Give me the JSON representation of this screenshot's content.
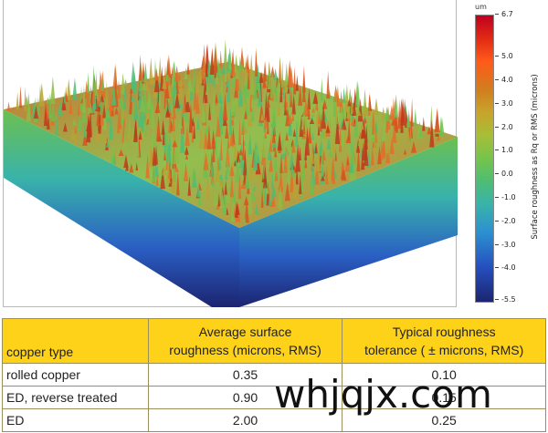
{
  "figure": {
    "colorbar": {
      "unit": "um",
      "title": "Surface roughness as Rq or RMS (microns)",
      "ticks": [
        "6.7",
        "5.0",
        "4.0",
        "3.0",
        "2.0",
        "1.0",
        "0.0",
        "-1.0",
        "-2.0",
        "-3.0",
        "-4.0",
        "-5.5"
      ],
      "colors": [
        "#c0001f",
        "#ff5a1a",
        "#a6be38",
        "#39b3aa",
        "#254fbe",
        "#1c2470"
      ]
    },
    "surface": {
      "icon": "3d-surface-roughness-plot",
      "top_color": "#d9531e",
      "mid_color": "#7cc24a",
      "base_color": "#243a9c"
    }
  },
  "table": {
    "headers": {
      "type": "copper type",
      "avg": [
        "Average surface",
        "roughness (microns, RMS)"
      ],
      "tol": [
        "Typical roughness",
        "tolerance ( ± microns, RMS)"
      ]
    },
    "rows": [
      {
        "type": "rolled copper",
        "avg": "0.35",
        "tol": "0.10"
      },
      {
        "type": "ED, reverse treated",
        "avg": "0.90",
        "tol": "0.15"
      },
      {
        "type": "ED",
        "avg": "2.00",
        "tol": "0.25"
      }
    ]
  },
  "watermark": "whjqjx.com"
}
